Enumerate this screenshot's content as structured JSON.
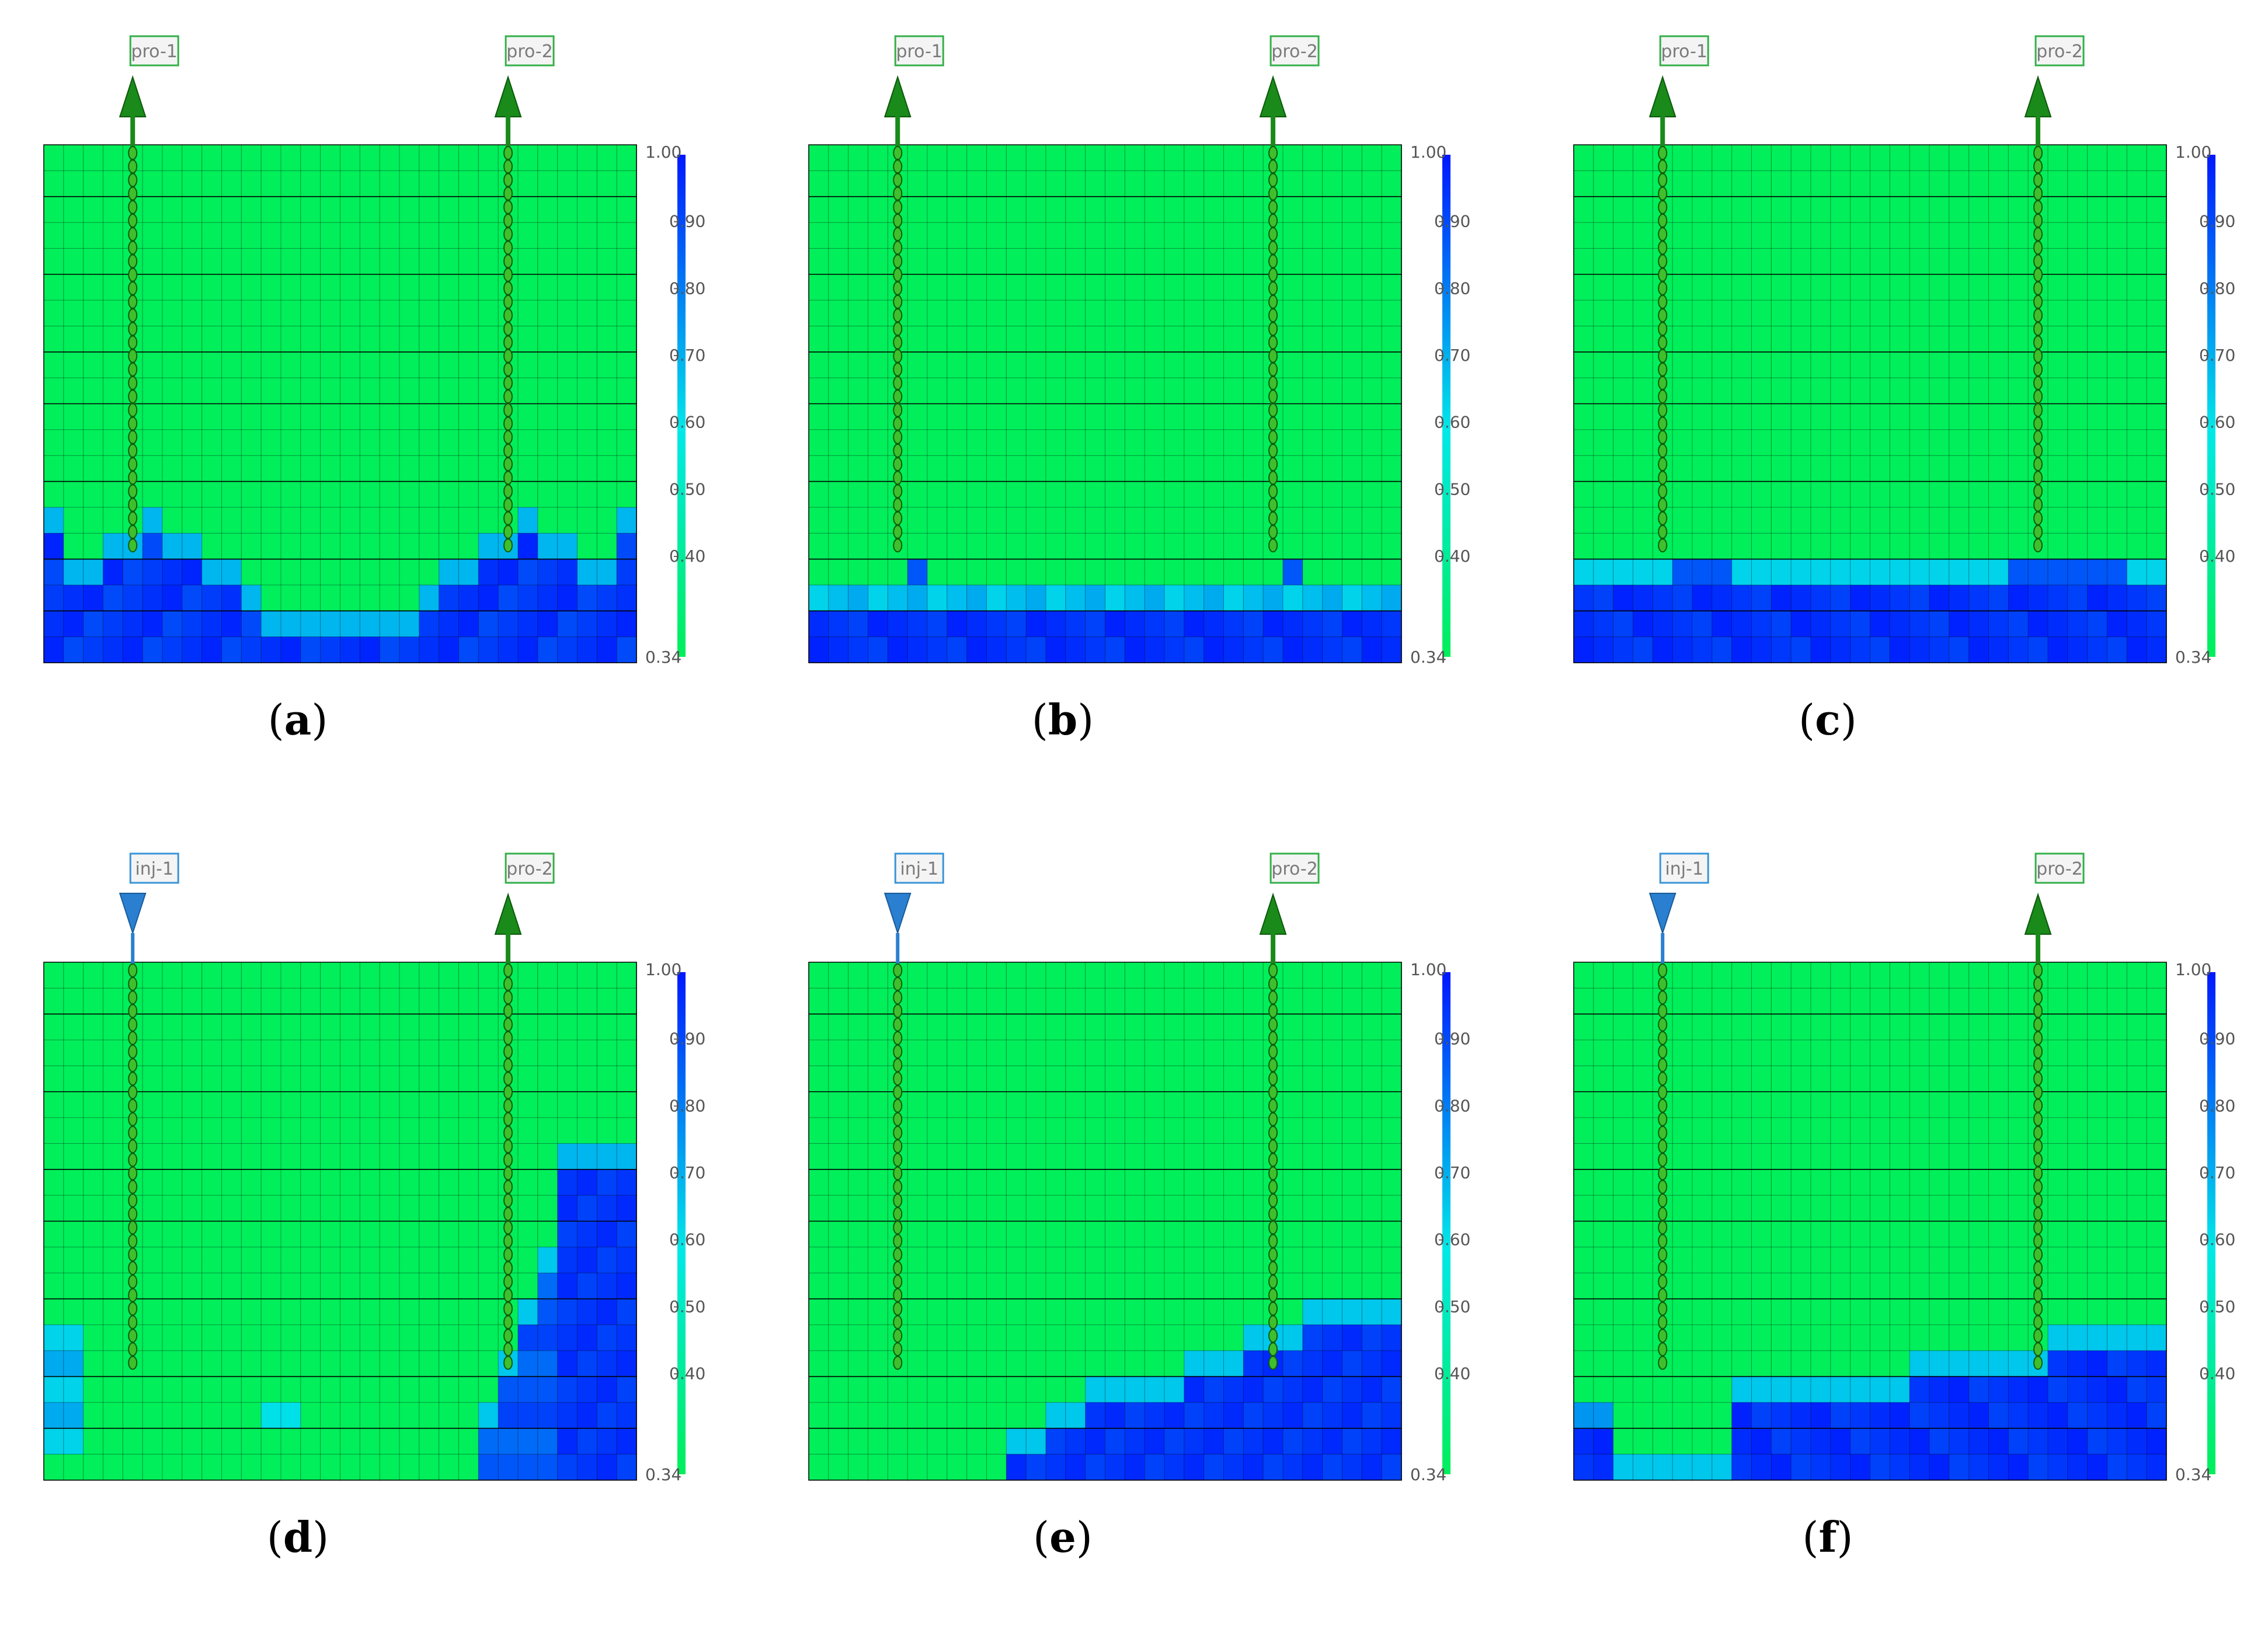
{
  "colorbar": {
    "min_label": "0.34",
    "max_label": "1.00",
    "ticks": [
      "0.90",
      "0.80",
      "0.70",
      "0.60",
      "0.50",
      "0.40"
    ],
    "low_color": "#00ef5a",
    "mid_color": "#00e8e8",
    "high_color": "#0018ff"
  },
  "colors": {
    "producer_well": "#1a8a1a",
    "producer_label_border": "#35b04a",
    "injector_well": "#2a7fd0",
    "injector_label_border": "#3a95d8",
    "grid_line": "#000000"
  },
  "panels": [
    {
      "id": "a",
      "caption": "a",
      "wells": [
        {
          "label": "pro-1",
          "type": "producer"
        },
        {
          "label": "pro-2",
          "type": "producer"
        }
      ],
      "saturation_front": "u-shape"
    },
    {
      "id": "b",
      "caption": "b",
      "wells": [
        {
          "label": "pro-1",
          "type": "producer"
        },
        {
          "label": "pro-2",
          "type": "producer"
        }
      ],
      "saturation_front": "flat-low"
    },
    {
      "id": "c",
      "caption": "c",
      "wells": [
        {
          "label": "pro-1",
          "type": "producer"
        },
        {
          "label": "pro-2",
          "type": "producer"
        }
      ],
      "saturation_front": "flat-mid"
    },
    {
      "id": "d",
      "caption": "d",
      "wells": [
        {
          "label": "inj-1",
          "type": "injector"
        },
        {
          "label": "pro-2",
          "type": "producer"
        }
      ],
      "saturation_front": "right-wall"
    },
    {
      "id": "e",
      "caption": "e",
      "wells": [
        {
          "label": "inj-1",
          "type": "injector"
        },
        {
          "label": "pro-2",
          "type": "producer"
        }
      ],
      "saturation_front": "ramp-right"
    },
    {
      "id": "f",
      "caption": "f",
      "wells": [
        {
          "label": "inj-1",
          "type": "injector"
        },
        {
          "label": "pro-2",
          "type": "producer"
        }
      ],
      "saturation_front": "ramp-step"
    }
  ]
}
